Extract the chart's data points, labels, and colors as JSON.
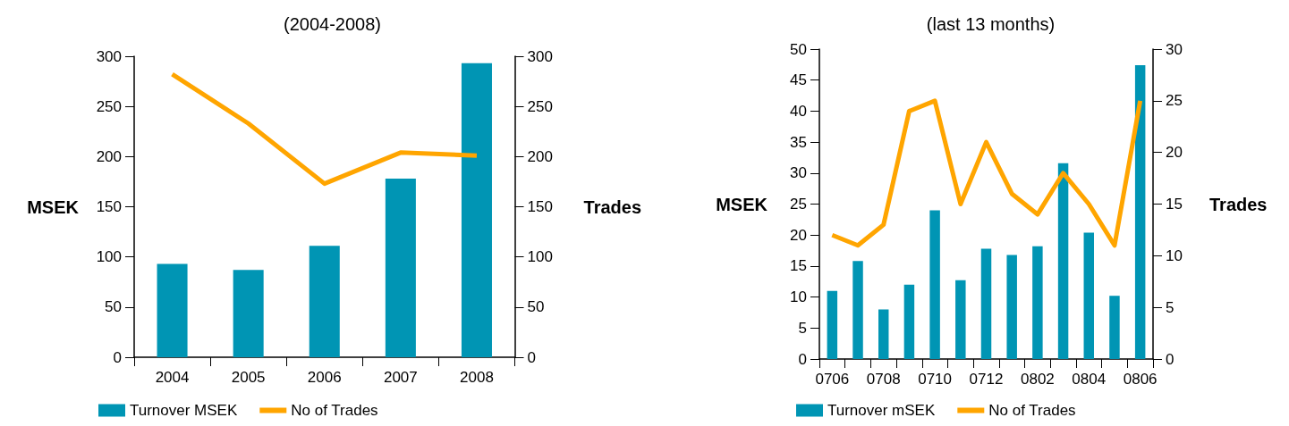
{
  "chart_data": [
    {
      "type": "bar",
      "title": "(2004-2008)",
      "ylabel": "MSEK",
      "y2label": "Trades",
      "categories": [
        "2004",
        "2005",
        "2006",
        "2007",
        "2008"
      ],
      "series": [
        {
          "name": "Turnover MSEK",
          "color": "#0095b4",
          "values": [
            93,
            87,
            111,
            178,
            293
          ]
        },
        {
          "name": "No of Trades",
          "type": "line",
          "axis": "y2",
          "color": "#ffa500",
          "values": [
            282,
            233,
            173,
            204,
            201
          ]
        }
      ],
      "ylim": [
        0,
        300
      ],
      "yticks": [
        0,
        50,
        100,
        150,
        200,
        250,
        300
      ],
      "y2lim": [
        0,
        300
      ],
      "y2ticks": [
        0,
        50,
        100,
        150,
        200,
        250,
        300
      ],
      "grid": false,
      "legend": "bottom",
      "marker": "none"
    },
    {
      "type": "bar",
      "title": "(last 13 months)",
      "ylabel": "MSEK",
      "y2label": "Trades",
      "categories": [
        "0706",
        null,
        "0708",
        null,
        "0710",
        null,
        "0712",
        null,
        "0802",
        null,
        "0804",
        null,
        "0806"
      ],
      "series": [
        {
          "name": "Turnover mSEK",
          "color": "#0095b4",
          "values": [
            11,
            15.8,
            8,
            12,
            24,
            12.7,
            17.8,
            16.8,
            18.2,
            31.6,
            20.4,
            10.2,
            47.4
          ]
        },
        {
          "name": "No of Trades",
          "type": "line",
          "axis": "y2",
          "color": "#ffa500",
          "values": [
            12,
            11,
            13,
            24,
            25,
            15,
            21,
            16,
            14,
            18,
            15,
            11,
            25
          ]
        }
      ],
      "ylim": [
        0,
        50
      ],
      "yticks": [
        0,
        5,
        10,
        15,
        20,
        25,
        30,
        35,
        40,
        45,
        50
      ],
      "y2lim": [
        0,
        30
      ],
      "y2ticks": [
        0,
        5,
        10,
        15,
        20,
        25,
        30
      ],
      "grid": false,
      "legend": "bottom",
      "marker": "none"
    }
  ]
}
